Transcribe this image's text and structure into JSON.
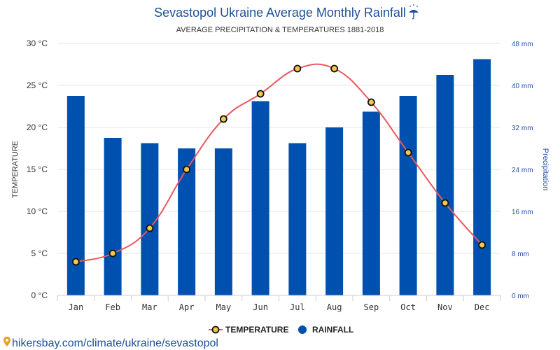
{
  "header": {
    "title": "Sevastopol Ukraine Average Monthly Rainfall",
    "title_icon": "umbrella-rain-icon",
    "subtitle": "AVERAGE PRECIPITATION & TEMPERATURES 1881-2018"
  },
  "footer": {
    "source_text": "hikersbay.com/climate/ukraine/sevastopol",
    "source_icon": "map-pin-icon"
  },
  "chart_data": {
    "type": "bar",
    "categories": [
      "Jan",
      "Feb",
      "Mar",
      "Apr",
      "May",
      "Jun",
      "Jul",
      "Aug",
      "Sep",
      "Oct",
      "Nov",
      "Dec"
    ],
    "series": [
      {
        "name": "RAINFALL",
        "type": "bar",
        "axis": "right",
        "unit": "mm",
        "color": "#0050b0",
        "values": [
          38,
          30,
          29,
          28,
          28,
          37,
          29,
          32,
          35,
          38,
          42,
          45
        ]
      },
      {
        "name": "TEMPERATURE",
        "type": "line",
        "axis": "left",
        "unit": "°C",
        "color": "#e8595f",
        "marker_fill": "#f3c74f",
        "values": [
          4,
          5,
          8,
          15,
          21,
          24,
          27,
          27,
          23,
          17,
          11,
          6
        ]
      }
    ],
    "y_left": {
      "label": "TEMPERATURE",
      "ticks": [
        "0 °C",
        "5 °C",
        "10 °C",
        "15 °C",
        "20 °C",
        "25 °C",
        "30 °C"
      ],
      "ylim": [
        0,
        30
      ]
    },
    "y_right": {
      "label": "Precipitation",
      "ticks": [
        "0 mm",
        "8 mm",
        "16 mm",
        "24 mm",
        "32 mm",
        "40 mm",
        "48 mm"
      ],
      "ylim": [
        0,
        48
      ]
    },
    "grid": true,
    "legend": {
      "position": "bottom-center",
      "items": [
        "TEMPERATURE",
        "RAINFALL"
      ]
    }
  }
}
